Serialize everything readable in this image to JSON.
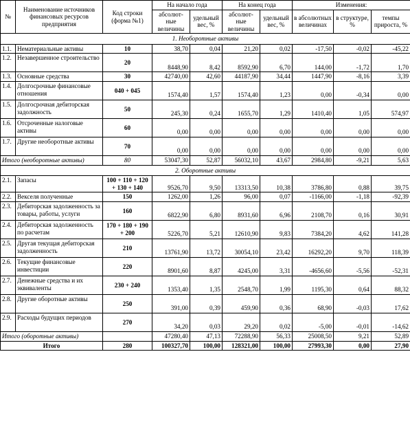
{
  "table": {
    "header": {
      "num": "№",
      "name": "Наименование источников финансовых ресурсов предприятия",
      "code": "Код строки (форма №1)",
      "groups": [
        "На начало года",
        "На конец года",
        "Изменения:"
      ],
      "sub": [
        "абсолют-ные величины",
        "удельный вес, %",
        "абсолют-ные величины",
        "удельный вес, %",
        "в абсолютных величинах",
        "в структуре, %",
        "темпы прироста, %"
      ]
    },
    "sections": [
      {
        "title": "1. Необоротные активы",
        "rows": [
          {
            "num": "1.1.",
            "name": "Нематериальные активы",
            "code": "10",
            "values": [
              "38,70",
              "0,04",
              "21,20",
              "0,02",
              "-17,50",
              "-0,02",
              "-45,22"
            ]
          },
          {
            "num": "1.2.",
            "name": "Незавершенное строительство",
            "code": "20",
            "values": [
              "8448,90",
              "8,42",
              "8592,90",
              "6,70",
              "144,00",
              "-1,72",
              "1,70"
            ]
          },
          {
            "num": "1.3.",
            "name": "Основные средства",
            "code": "30",
            "values": [
              "42740,00",
              "42,60",
              "44187,90",
              "34,44",
              "1447,90",
              "-8,16",
              "3,39"
            ]
          },
          {
            "num": "1.4.",
            "name": "Долгосрочные финансовые отношения",
            "code": "040 + 045",
            "values": [
              "1574,40",
              "1,57",
              "1574,40",
              "1,23",
              "0,00",
              "-0,34",
              "0,00"
            ]
          },
          {
            "num": "1.5.",
            "name": "Долгосрочная дебиторская задолжность",
            "code": "50",
            "values": [
              "245,30",
              "0,24",
              "1655,70",
              "1,29",
              "1410,40",
              "1,05",
              "574,97"
            ]
          },
          {
            "num": "1.6.",
            "name": "Отсроченные налоговые активы",
            "code": "60",
            "values": [
              "0,00",
              "0,00",
              "0,00",
              "0,00",
              "0,00",
              "0,00",
              "0,00"
            ]
          },
          {
            "num": "1.7.",
            "name": "Другие необоротные активы",
            "code": "70",
            "values": [
              "0,00",
              "0,00",
              "0,00",
              "0,00",
              "0,00",
              "0,00",
              "0,00"
            ]
          }
        ],
        "total": {
          "label": "Итого (необоротные активы)",
          "code": "80",
          "values": [
            "53047,30",
            "52,87",
            "56032,10",
            "43,67",
            "2984,80",
            "-9,21",
            "5,63"
          ]
        }
      },
      {
        "title": "2. Оборотные активы",
        "rows": [
          {
            "num": "2.1.",
            "name": "Запасы",
            "code": "100 + 110 + 120 + 130 + 140",
            "values": [
              "9526,70",
              "9,50",
              "13313,50",
              "10,38",
              "3786,80",
              "0,88",
              "39,75"
            ]
          },
          {
            "num": "2.2.",
            "name": "Векселя полученные",
            "code": "150",
            "values": [
              "1262,00",
              "1,26",
              "96,00",
              "0,07",
              "-1166,00",
              "-1,18",
              "-92,39"
            ]
          },
          {
            "num": "2.3.",
            "name": "Дебиторская задолженность за товары, работы, услуги",
            "code": "160",
            "values": [
              "6822,90",
              "6,80",
              "8931,60",
              "6,96",
              "2108,70",
              "0,16",
              "30,91"
            ]
          },
          {
            "num": "2.4.",
            "name": "Дебиторская задолженность по расчетам",
            "code": "170 + 180 + 190 + 200",
            "values": [
              "5226,70",
              "5,21",
              "12610,90",
              "9,83",
              "7384,20",
              "4,62",
              "141,28"
            ]
          },
          {
            "num": "2.5.",
            "name": "Другая текущая дебиторская задолженность",
            "code": "210",
            "values": [
              "13761,90",
              "13,72",
              "30054,10",
              "23,42",
              "16292,20",
              "9,70",
              "118,39"
            ]
          },
          {
            "num": "2.6.",
            "name": "Текущие финансовые инвестиции",
            "code": "220",
            "values": [
              "8901,60",
              "8,87",
              "4245,00",
              "3,31",
              "-4656,60",
              "-5,56",
              "-52,31"
            ]
          },
          {
            "num": "2.7.",
            "name": "Денежные средства и их эквиваленты",
            "code": "230 + 240",
            "values": [
              "1353,40",
              "1,35",
              "2548,70",
              "1,99",
              "1195,30",
              "0,64",
              "88,32"
            ]
          },
          {
            "num": "2.8.",
            "name": "Другие оборотные активы",
            "code": "250",
            "values": [
              "391,00",
              "0,39",
              "459,90",
              "0,36",
              "68,90",
              "-0,03",
              "17,62"
            ]
          },
          {
            "num": "2.9.",
            "name": "Расходы будущих периодов",
            "code": "270",
            "values": [
              "34,20",
              "0,03",
              "29,20",
              "0,02",
              "-5,00",
              "-0,01",
              "-14,62"
            ]
          }
        ],
        "total": {
          "label": "Итого (оборотные активы)",
          "values": [
            "47280,40",
            "47,13",
            "72288,90",
            "56,33",
            "25008,50",
            "9,21",
            "52,89"
          ]
        }
      }
    ],
    "grand_total": {
      "label": "Итого",
      "code": "280",
      "values": [
        "100327,70",
        "100,00",
        "128321,00",
        "100,00",
        "27993,30",
        "0,00",
        "27,90"
      ]
    }
  }
}
